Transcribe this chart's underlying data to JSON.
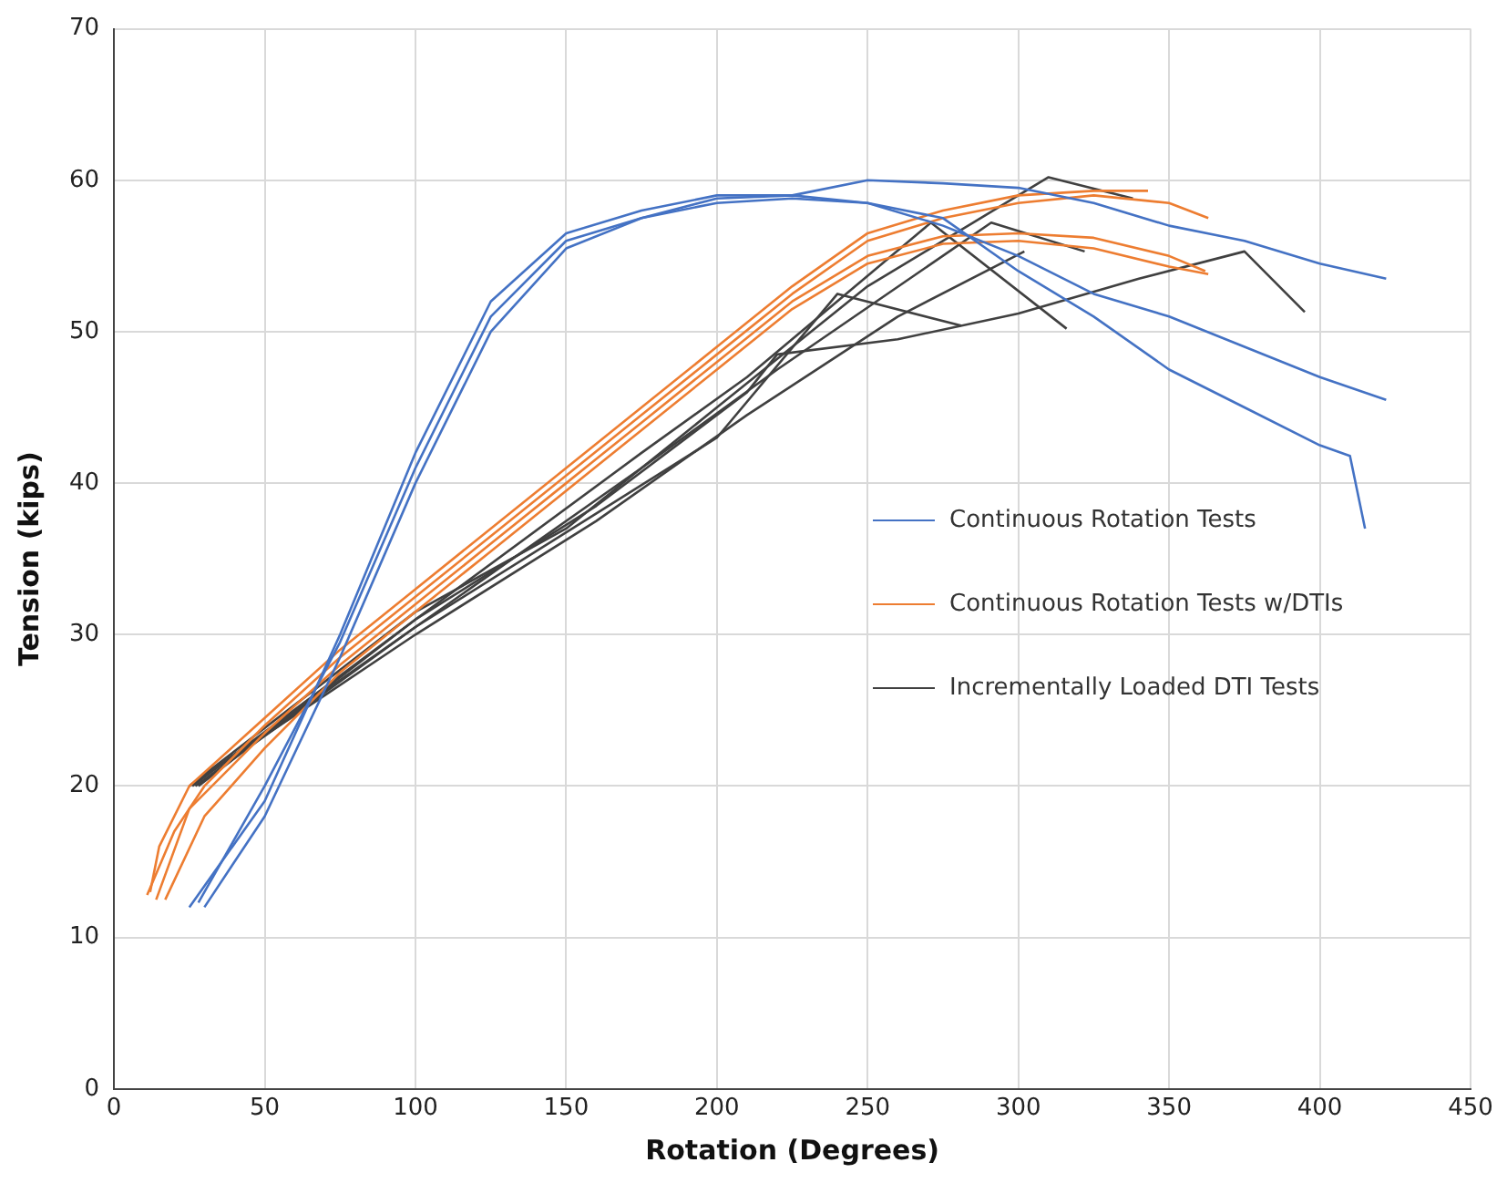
{
  "chart_data": {
    "type": "line",
    "xlabel": "Rotation (Degrees)",
    "ylabel": "Tension (kips)",
    "xlim": [
      0,
      450
    ],
    "xticks": [
      0,
      50,
      100,
      150,
      200,
      250,
      300,
      350,
      400,
      450
    ],
    "ylim": [
      0,
      70
    ],
    "yticks": [
      0,
      10,
      20,
      30,
      40,
      50,
      60,
      70
    ],
    "grid": true,
    "legend": "right",
    "marker": "none",
    "line_style": "solid",
    "series": [
      {
        "name": "Continuous Rotation Tests",
        "color": "#4472c4",
        "x": [
          25,
          50,
          75,
          100,
          125,
          150,
          175,
          200,
          225,
          250,
          275,
          300,
          325,
          350,
          375,
          400,
          422
        ],
        "values": [
          12,
          19,
          30,
          42,
          52,
          56.5,
          58,
          59,
          59,
          60,
          59.8,
          59.5,
          58.5,
          57,
          56,
          54.5,
          53.5
        ]
      },
      {
        "color": "#4472c4",
        "x": [
          28,
          50,
          75,
          100,
          125,
          150,
          175,
          200,
          225,
          250,
          275,
          300,
          325,
          350,
          375,
          400,
          422
        ],
        "values": [
          12.3,
          20,
          29.5,
          41,
          51,
          56,
          57.5,
          58.8,
          59,
          58.5,
          57,
          55,
          52.5,
          51,
          49,
          47,
          45.5
        ]
      },
      {
        "color": "#4472c4",
        "x": [
          30,
          50,
          75,
          100,
          125,
          150,
          175,
          200,
          225,
          250,
          275,
          300,
          325,
          350,
          375,
          400,
          410,
          415
        ],
        "values": [
          12,
          18,
          28.5,
          40,
          50,
          55.5,
          57.5,
          58.5,
          58.8,
          58.5,
          57.5,
          54,
          51,
          47.5,
          45,
          42.5,
          41.8,
          37
        ]
      },
      {
        "name": "Continuous Rotation Tests w/DTIs",
        "color": "#ed7d31",
        "x": [
          12,
          15,
          25,
          50,
          75,
          100,
          125,
          150,
          175,
          200,
          225,
          250,
          275,
          300,
          325,
          343
        ],
        "values": [
          13,
          16,
          20,
          24.5,
          29,
          33,
          37,
          41,
          45,
          49,
          53,
          56.5,
          58,
          59,
          59.3,
          59.3
        ]
      },
      {
        "color": "#ed7d31",
        "x": [
          11,
          20,
          30,
          50,
          75,
          100,
          125,
          150,
          175,
          200,
          225,
          250,
          275,
          300,
          325,
          350,
          363
        ],
        "values": [
          12.8,
          17,
          20,
          24,
          28.5,
          32.5,
          36.5,
          40.5,
          44.5,
          48.5,
          52.5,
          56,
          57.5,
          58.5,
          59,
          58.5,
          57.5
        ]
      },
      {
        "color": "#ed7d31",
        "x": [
          14,
          25,
          50,
          75,
          100,
          125,
          150,
          175,
          200,
          225,
          250,
          275,
          300,
          325,
          350,
          362
        ],
        "values": [
          12.5,
          18.5,
          23.5,
          28,
          32,
          36,
          40,
          44,
          48,
          52,
          55,
          56.3,
          56.5,
          56.2,
          55,
          54
        ]
      },
      {
        "color": "#ed7d31",
        "x": [
          17,
          30,
          50,
          75,
          100,
          125,
          150,
          175,
          200,
          225,
          250,
          275,
          300,
          325,
          350,
          363
        ],
        "values": [
          12.5,
          18,
          22.5,
          27.5,
          31.5,
          35.5,
          39.5,
          43.5,
          47.5,
          51.5,
          54.5,
          55.8,
          56,
          55.5,
          54.3,
          53.8
        ]
      },
      {
        "name": "Incrementally Loaded DTI Tests",
        "color": "#404040",
        "x": [
          25,
          100,
          160,
          200,
          240,
          281
        ],
        "values": [
          20,
          30.5,
          38,
          43,
          52.5,
          50.4
        ]
      },
      {
        "color": "#404040",
        "x": [
          28,
          100,
          160,
          210,
          220,
          260,
          300,
          340,
          375,
          395
        ],
        "values": [
          20,
          31,
          38.5,
          46,
          48.5,
          49.5,
          51.2,
          53.5,
          55.3,
          51.3
        ]
      },
      {
        "color": "#404040",
        "x": [
          25,
          100,
          150,
          200,
          250,
          310,
          338
        ],
        "values": [
          20,
          31.5,
          37,
          45,
          53,
          60.2,
          58.8
        ]
      },
      {
        "color": "#404040",
        "x": [
          27,
          100,
          175,
          220,
          291,
          322
        ],
        "values": [
          20,
          30.5,
          41,
          47.5,
          57.2,
          55.3
        ]
      },
      {
        "color": "#404040",
        "x": [
          26,
          100,
          175,
          210,
          271,
          316
        ],
        "values": [
          20,
          31,
          42,
          47,
          57.2,
          50.2
        ]
      },
      {
        "color": "#404040",
        "x": [
          25,
          100,
          160,
          210,
          260,
          302
        ],
        "values": [
          20,
          30,
          37.5,
          44.5,
          51,
          55.3
        ]
      }
    ]
  }
}
